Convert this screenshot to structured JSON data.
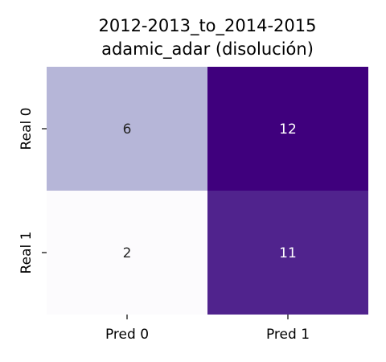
{
  "chart_data": {
    "type": "heatmap",
    "title_lines": [
      "2012-2013_to_2014-2015",
      "adamic_adar (disolución)"
    ],
    "x_categories": [
      "Pred 0",
      "Pred 1"
    ],
    "y_categories": [
      "Real 0",
      "Real 1"
    ],
    "values": [
      [
        6,
        12
      ],
      [
        2,
        11
      ]
    ],
    "colormap": "Purples",
    "value_range": [
      2,
      12
    ],
    "colorbar": false,
    "annotations": true,
    "grid": false
  }
}
